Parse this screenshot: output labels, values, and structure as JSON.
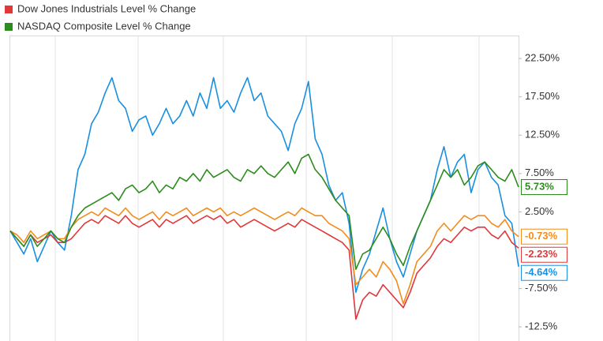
{
  "chart_data": {
    "type": "line",
    "series": [
      {
        "color": "#1a8fdf",
        "values": [
          0,
          -1.5,
          -3,
          -1,
          -4,
          -2,
          0,
          -1.5,
          -2.5,
          2,
          8,
          10,
          14,
          15.5,
          18,
          20,
          17,
          16,
          13,
          14.5,
          15,
          12.5,
          14,
          16,
          14,
          15,
          17,
          15,
          18,
          16,
          20,
          16,
          17,
          15.5,
          18,
          20,
          17,
          18,
          15,
          14,
          13,
          10.5,
          14,
          16,
          19.5,
          12,
          10,
          6,
          4,
          5,
          1,
          -8,
          -5,
          -3,
          0,
          3,
          -1,
          -4,
          -6,
          -3,
          0,
          2,
          4,
          8,
          11,
          7,
          9,
          10,
          5,
          8,
          9,
          7,
          6,
          2,
          1,
          -4.64
        ],
        "value_labels": [
          null,
          null,
          null,
          null,
          null,
          null,
          null,
          null,
          null,
          null,
          null,
          null,
          null,
          null,
          null,
          null,
          null,
          null,
          null,
          null,
          null,
          null,
          null,
          null,
          null,
          null,
          null,
          null,
          null,
          null,
          null,
          null,
          null,
          null,
          null,
          null,
          null,
          null,
          null,
          null,
          null,
          null,
          null,
          null,
          null,
          null,
          null,
          null,
          null,
          null,
          null,
          null,
          null,
          null,
          null,
          null,
          null,
          null,
          null,
          null,
          null,
          null,
          null,
          null,
          null,
          null,
          null,
          null,
          null,
          null,
          null,
          null,
          null,
          null,
          null,
          "-4.64%"
        ]
      },
      {
        "color": "#f28c1c",
        "values": [
          0,
          -0.5,
          -1.5,
          0,
          -1,
          -0.5,
          0,
          -1,
          -1,
          0.5,
          1.5,
          2,
          2.5,
          2,
          3,
          2.5,
          2,
          3,
          2,
          1.5,
          2,
          2.5,
          1.5,
          2.5,
          2,
          2.5,
          3,
          2,
          2.5,
          3,
          2.5,
          3,
          2,
          2.5,
          2,
          2.5,
          3,
          2.5,
          2,
          1.5,
          2,
          2.5,
          2,
          3,
          2.5,
          2,
          2,
          1,
          0.5,
          0,
          -1,
          -7,
          -6,
          -5,
          -6,
          -4,
          -5,
          -6.5,
          -9.5,
          -7,
          -4,
          -3,
          -2,
          0,
          1,
          0,
          1,
          2,
          1.5,
          2,
          2,
          1,
          0.5,
          1.5,
          0,
          -0.73
        ],
        "value_labels": [
          null,
          null,
          null,
          null,
          null,
          null,
          null,
          null,
          null,
          null,
          null,
          null,
          null,
          null,
          null,
          null,
          null,
          null,
          null,
          null,
          null,
          null,
          null,
          null,
          null,
          null,
          null,
          null,
          null,
          null,
          null,
          null,
          null,
          null,
          null,
          null,
          null,
          null,
          null,
          null,
          null,
          null,
          null,
          null,
          null,
          null,
          null,
          null,
          null,
          null,
          null,
          null,
          null,
          null,
          null,
          null,
          null,
          null,
          null,
          null,
          null,
          null,
          null,
          null,
          null,
          null,
          null,
          null,
          null,
          null,
          null,
          null,
          null,
          null,
          null,
          "-0.73%"
        ]
      },
      {
        "name": "Dow Jones Industrials Level % Change",
        "color": "#e0373a",
        "values": [
          0,
          -1,
          -2,
          -0.5,
          -1.5,
          -1,
          -0.5,
          -1.5,
          -1.5,
          -1,
          0,
          1,
          1.5,
          1,
          2,
          1.5,
          1,
          2,
          1,
          0.5,
          1,
          1.5,
          0.5,
          1.5,
          1,
          1.5,
          2,
          1,
          1.5,
          2,
          1.5,
          2,
          1,
          1.5,
          0.5,
          1,
          1.5,
          1,
          0.5,
          0,
          0.5,
          1,
          0.5,
          1.5,
          1,
          0.5,
          0,
          -0.5,
          -1,
          -1.5,
          -2.5,
          -11.5,
          -9,
          -8,
          -8.5,
          -7,
          -8,
          -9,
          -10,
          -8,
          -5.5,
          -4.5,
          -3.5,
          -2,
          -1,
          -1.5,
          -0.5,
          0.5,
          0,
          0.5,
          0.5,
          -0.5,
          -1,
          0,
          -1.5,
          -2.23
        ],
        "value_labels": [
          null,
          null,
          null,
          null,
          null,
          null,
          null,
          null,
          null,
          null,
          null,
          null,
          null,
          null,
          null,
          null,
          null,
          null,
          null,
          null,
          null,
          null,
          null,
          null,
          null,
          null,
          null,
          null,
          null,
          null,
          null,
          null,
          null,
          null,
          null,
          null,
          null,
          null,
          null,
          null,
          null,
          null,
          null,
          null,
          null,
          null,
          null,
          null,
          null,
          null,
          null,
          null,
          null,
          null,
          null,
          null,
          null,
          null,
          null,
          null,
          null,
          null,
          null,
          null,
          null,
          null,
          null,
          null,
          null,
          null,
          null,
          null,
          null,
          null,
          null,
          "-2.23%"
        ]
      },
      {
        "name": "NASDAQ Composite Level % Change",
        "color": "#2c8c1c",
        "values": [
          0,
          -1,
          -2,
          -0.5,
          -2,
          -1,
          0,
          -1,
          -1.5,
          0.5,
          2,
          3,
          3.5,
          4,
          4.5,
          5,
          4,
          5.5,
          6,
          5,
          5.5,
          6.5,
          5,
          6,
          5.5,
          7,
          6.5,
          7.5,
          6.5,
          8,
          7,
          7.5,
          8,
          7,
          6.5,
          8,
          7.5,
          8.5,
          7.5,
          7,
          8,
          9,
          7.5,
          9.5,
          10,
          8,
          7,
          5.5,
          4,
          3,
          2,
          -5,
          -3,
          -2.5,
          -1,
          0.5,
          -1,
          -3,
          -4.5,
          -2,
          0,
          2,
          4,
          6,
          8,
          7,
          8,
          6,
          7,
          8.5,
          9,
          8,
          7,
          6.5,
          8,
          5.73
        ],
        "value_labels": [
          null,
          null,
          null,
          null,
          null,
          null,
          null,
          null,
          null,
          null,
          null,
          null,
          null,
          null,
          null,
          null,
          null,
          null,
          null,
          null,
          null,
          null,
          null,
          null,
          null,
          null,
          null,
          null,
          null,
          null,
          null,
          null,
          null,
          null,
          null,
          null,
          null,
          null,
          null,
          null,
          null,
          null,
          null,
          null,
          null,
          null,
          null,
          null,
          null,
          null,
          null,
          null,
          null,
          null,
          null,
          null,
          null,
          null,
          null,
          null,
          null,
          null,
          null,
          null,
          null,
          null,
          null,
          null,
          null,
          null,
          null,
          null,
          null,
          null,
          null,
          "5.73%"
        ]
      }
    ],
    "ylim": [
      -14.35,
      25.5
    ],
    "yticks": [
      {
        "value": 22.5,
        "label": "22.50%"
      },
      {
        "value": 17.5,
        "label": "17.50%"
      },
      {
        "value": 12.5,
        "label": "12.50%"
      },
      {
        "value": 7.5,
        "label": "7.50%"
      },
      {
        "value": 2.5,
        "label": "2.50%"
      },
      {
        "value": -7.5,
        "label": "-7.50%"
      },
      {
        "value": -12.5,
        "label": "-12.5%"
      }
    ],
    "legend": "top-left"
  }
}
